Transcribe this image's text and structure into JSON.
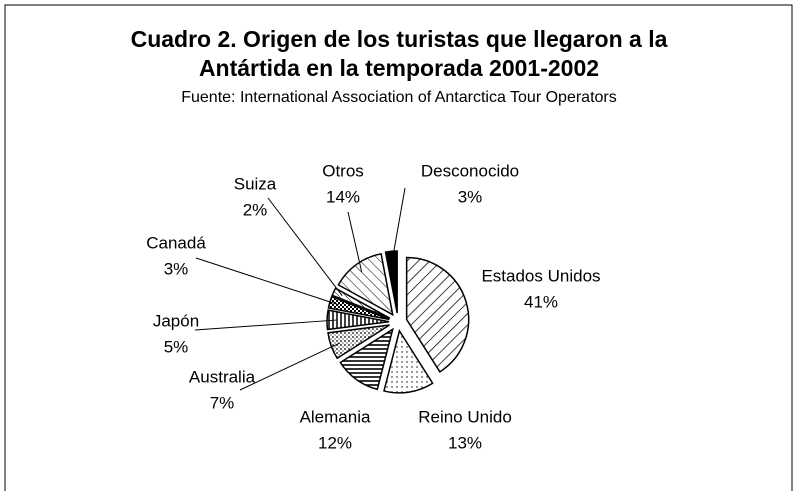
{
  "chart_data": {
    "type": "pie",
    "title": [
      "Cuadro 2. Origen de los turistas que llegaron a la",
      "Antártida en la temporada 2001-2002"
    ],
    "subtitle": "Fuente: International Association of Antarctica Tour Operators",
    "categories": [
      "Estados Unidos",
      "Reino Unido",
      "Alemania",
      "Australia",
      "Japón",
      "Canadá",
      "Suiza",
      "Otros",
      "Desconocido"
    ],
    "values": [
      41,
      13,
      12,
      7,
      5,
      3,
      2,
      14,
      3
    ],
    "value_labels": [
      "41%",
      "13%",
      "12%",
      "7%",
      "5%",
      "3%",
      "2%",
      "14%",
      "3%"
    ]
  }
}
